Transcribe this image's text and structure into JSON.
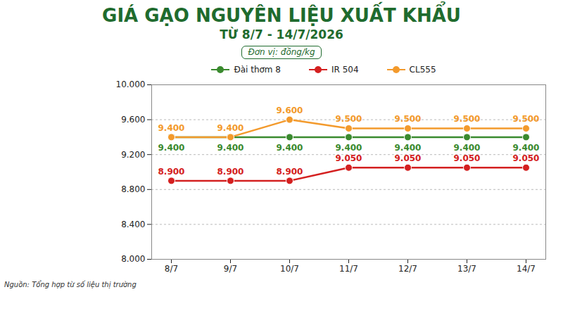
{
  "chart_data": {
    "type": "line",
    "title": "GIÁ GẠO NGUYÊN LIỆU XUẤT KHẨU",
    "subtitle": "TỪ 8/7 - 14/7/2026",
    "unit_label": "Đơn vị: đồng/kg",
    "source": "Nguồn: Tổng hợp từ số liệu thị trường",
    "categories": [
      "8/7",
      "9/7",
      "10/7",
      "11/7",
      "12/7",
      "13/7",
      "14/7"
    ],
    "series": [
      {
        "name": "Đài thơm 8",
        "color": "#3a8a2e",
        "values": [
          9400,
          9400,
          9400,
          9400,
          9400,
          9400,
          9400
        ],
        "value_labels": [
          "9.400",
          "9.400",
          "9.400",
          "9.400",
          "9.400",
          "9.400",
          "9.400"
        ]
      },
      {
        "name": "IR 504",
        "color": "#d42020",
        "values": [
          8900,
          8900,
          8900,
          9050,
          9050,
          9050,
          9050
        ],
        "value_labels": [
          "8.900",
          "8.900",
          "8.900",
          "9.050",
          "9.050",
          "9.050",
          "9.050"
        ]
      },
      {
        "name": "CL555",
        "color": "#f39a2c",
        "values": [
          9400,
          9400,
          9600,
          9500,
          9500,
          9500,
          9500
        ],
        "value_labels": [
          "9.400",
          "9.400",
          "9.600",
          "9.500",
          "9.500",
          "9.500",
          "9.500"
        ]
      }
    ],
    "ylim": [
      8000,
      10000
    ],
    "yticks": [
      {
        "value": 8000,
        "label": "8.000"
      },
      {
        "value": 8400,
        "label": "8.400"
      },
      {
        "value": 8800,
        "label": "8.800"
      },
      {
        "value": 9200,
        "label": "9.200"
      },
      {
        "value": 9600,
        "label": "9.600"
      },
      {
        "value": 10000,
        "label": "10.000"
      }
    ],
    "grid": true,
    "legend": "top",
    "data_labels": true,
    "marker": "circle"
  }
}
